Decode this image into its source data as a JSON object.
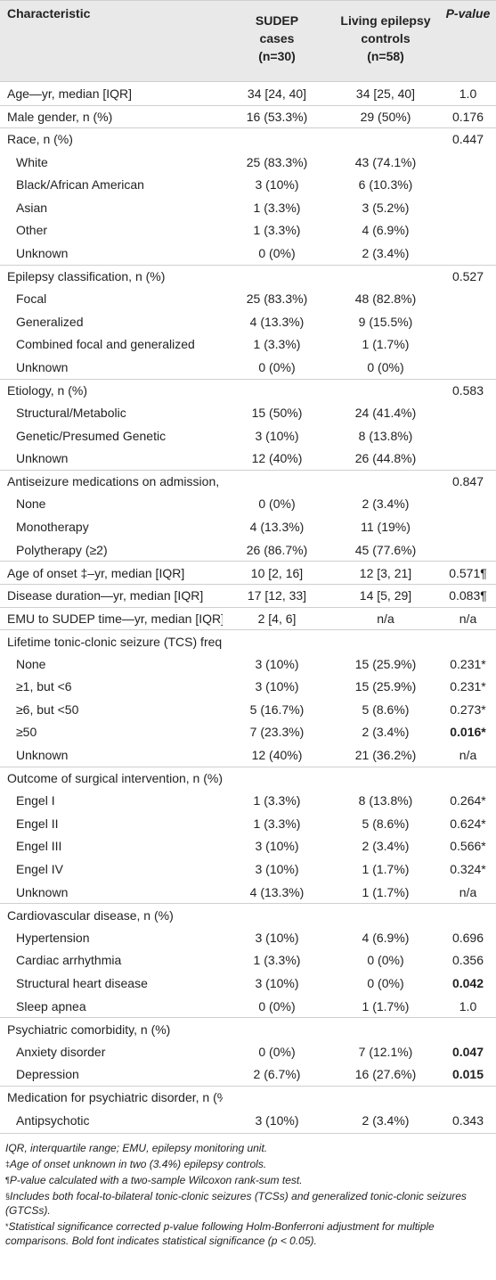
{
  "table": {
    "headers": {
      "characteristic": "Characteristic",
      "sudep_line1": "SUDEP",
      "sudep_line2": "cases",
      "sudep_n": "(n=30)",
      "living_line1": "Living epilepsy",
      "living_line2": "controls",
      "living_n": "(n=58)",
      "pvalue": "P-value"
    },
    "rows": [
      {
        "label": "Age—yr, median [IQR]",
        "sudep": "34 [24, 40]",
        "living": "34 [25, 40]",
        "p": "1.0",
        "sub": false,
        "section": false,
        "bold": false
      },
      {
        "label": "Male gender, n (%)",
        "sudep": "16 (53.3%)",
        "living": "29 (50%)",
        "p": "0.176",
        "sub": false,
        "section": true,
        "bold": false
      },
      {
        "label": "Race, n (%)",
        "sudep": "",
        "living": "",
        "p": "0.447",
        "sub": false,
        "section": true,
        "bold": false
      },
      {
        "label": "White",
        "sudep": "25 (83.3%)",
        "living": "43 (74.1%)",
        "p": "",
        "sub": true,
        "section": false,
        "bold": false
      },
      {
        "label": "Black/African American",
        "sudep": "3 (10%)",
        "living": "6 (10.3%)",
        "p": "",
        "sub": true,
        "section": false,
        "bold": false
      },
      {
        "label": "Asian",
        "sudep": "1 (3.3%)",
        "living": "3 (5.2%)",
        "p": "",
        "sub": true,
        "section": false,
        "bold": false
      },
      {
        "label": "Other",
        "sudep": "1 (3.3%)",
        "living": "4 (6.9%)",
        "p": "",
        "sub": true,
        "section": false,
        "bold": false
      },
      {
        "label": "Unknown",
        "sudep": "0 (0%)",
        "living": "2 (3.4%)",
        "p": "",
        "sub": true,
        "section": false,
        "bold": false
      },
      {
        "label": "Epilepsy classification, n (%)",
        "sudep": "",
        "living": "",
        "p": "0.527",
        "sub": false,
        "section": true,
        "bold": false
      },
      {
        "label": "Focal",
        "sudep": "25 (83.3%)",
        "living": "48 (82.8%)",
        "p": "",
        "sub": true,
        "section": false,
        "bold": false
      },
      {
        "label": "Generalized",
        "sudep": "4 (13.3%)",
        "living": "9 (15.5%)",
        "p": "",
        "sub": true,
        "section": false,
        "bold": false
      },
      {
        "label": "Combined focal and generalized",
        "sudep": "1 (3.3%)",
        "living": "1 (1.7%)",
        "p": "",
        "sub": true,
        "section": false,
        "bold": false
      },
      {
        "label": "Unknown",
        "sudep": "0 (0%)",
        "living": "0 (0%)",
        "p": "",
        "sub": true,
        "section": false,
        "bold": false
      },
      {
        "label": "Etiology, n (%)",
        "sudep": "",
        "living": "",
        "p": "0.583",
        "sub": false,
        "section": true,
        "bold": false
      },
      {
        "label": "Structural/Metabolic",
        "sudep": "15 (50%)",
        "living": "24 (41.4%)",
        "p": "",
        "sub": true,
        "section": false,
        "bold": false
      },
      {
        "label": "Genetic/Presumed Genetic",
        "sudep": "3 (10%)",
        "living": "8 (13.8%)",
        "p": "",
        "sub": true,
        "section": false,
        "bold": false
      },
      {
        "label": "Unknown",
        "sudep": "12 (40%)",
        "living": "26 (44.8%)",
        "p": "",
        "sub": true,
        "section": false,
        "bold": false
      },
      {
        "label": "Antiseizure medications on admission, n (%)",
        "sudep": "",
        "living": "",
        "p": "0.847",
        "sub": false,
        "section": true,
        "bold": false
      },
      {
        "label": "None",
        "sudep": "0 (0%)",
        "living": "2 (3.4%)",
        "p": "",
        "sub": true,
        "section": false,
        "bold": false
      },
      {
        "label": "Monotherapy",
        "sudep": "4 (13.3%)",
        "living": "11 (19%)",
        "p": "",
        "sub": true,
        "section": false,
        "bold": false
      },
      {
        "label": "Polytherapy (≥2)",
        "sudep": "26 (86.7%)",
        "living": "45 (77.6%)",
        "p": "",
        "sub": true,
        "section": false,
        "bold": false
      },
      {
        "label": "Age of onset ‡–yr, median [IQR]",
        "sudep": "10 [2, 16]",
        "living": "12 [3, 21]",
        "p": "0.571¶",
        "sub": false,
        "section": true,
        "bold": false
      },
      {
        "label": "Disease duration—yr, median [IQR]",
        "sudep": "17 [12, 33]",
        "living": "14 [5, 29]",
        "p": "0.083¶",
        "sub": false,
        "section": true,
        "bold": false
      },
      {
        "label": "EMU to SUDEP time—yr, median [IQR]",
        "sudep": "2 [4, 6]",
        "living": "n/a",
        "p": "n/a",
        "sub": false,
        "section": true,
        "bold": false
      },
      {
        "label": "Lifetime tonic-clonic seizure (TCS) frequency§, n (%)",
        "sudep": "",
        "living": "",
        "p": "",
        "sub": false,
        "section": true,
        "bold": false
      },
      {
        "label": "None",
        "sudep": "3 (10%)",
        "living": "15 (25.9%)",
        "p": "0.231*",
        "sub": true,
        "section": false,
        "bold": false
      },
      {
        "label": "≥1, but <6",
        "sudep": "3 (10%)",
        "living": "15 (25.9%)",
        "p": "0.231*",
        "sub": true,
        "section": false,
        "bold": false
      },
      {
        "label": "≥6, but <50",
        "sudep": "5 (16.7%)",
        "living": "5 (8.6%)",
        "p": "0.273*",
        "sub": true,
        "section": false,
        "bold": false
      },
      {
        "label": "≥50",
        "sudep": "7 (23.3%)",
        "living": "2 (3.4%)",
        "p": "0.016*",
        "sub": true,
        "section": false,
        "bold": true
      },
      {
        "label": "Unknown",
        "sudep": "12 (40%)",
        "living": "21 (36.2%)",
        "p": "n/a",
        "sub": true,
        "section": false,
        "bold": false
      },
      {
        "label": "Outcome of surgical intervention, n (%)",
        "sudep": "",
        "living": "",
        "p": "",
        "sub": false,
        "section": true,
        "bold": false
      },
      {
        "label": "Engel I",
        "sudep": "1 (3.3%)",
        "living": "8 (13.8%)",
        "p": "0.264*",
        "sub": true,
        "section": false,
        "bold": false
      },
      {
        "label": "Engel II",
        "sudep": "1 (3.3%)",
        "living": "5 (8.6%)",
        "p": "0.624*",
        "sub": true,
        "section": false,
        "bold": false
      },
      {
        "label": "Engel III",
        "sudep": "3 (10%)",
        "living": "2 (3.4%)",
        "p": "0.566*",
        "sub": true,
        "section": false,
        "bold": false
      },
      {
        "label": "Engel IV",
        "sudep": "3 (10%)",
        "living": "1 (1.7%)",
        "p": "0.324*",
        "sub": true,
        "section": false,
        "bold": false
      },
      {
        "label": "Unknown",
        "sudep": "4 (13.3%)",
        "living": "1 (1.7%)",
        "p": "n/a",
        "sub": true,
        "section": false,
        "bold": false
      },
      {
        "label": "Cardiovascular disease, n (%)",
        "sudep": "",
        "living": "",
        "p": "",
        "sub": false,
        "section": true,
        "bold": false
      },
      {
        "label": "Hypertension",
        "sudep": "3 (10%)",
        "living": "4 (6.9%)",
        "p": "0.696",
        "sub": true,
        "section": false,
        "bold": false
      },
      {
        "label": "Cardiac arrhythmia",
        "sudep": "1 (3.3%)",
        "living": "0 (0%)",
        "p": "0.356",
        "sub": true,
        "section": false,
        "bold": false
      },
      {
        "label": "Structural heart disease",
        "sudep": "3 (10%)",
        "living": "0 (0%)",
        "p": "0.042",
        "sub": true,
        "section": false,
        "bold": true
      },
      {
        "label": "Sleep apnea",
        "sudep": "0 (0%)",
        "living": "1 (1.7%)",
        "p": "1.0",
        "sub": true,
        "section": false,
        "bold": false
      },
      {
        "label": "Psychiatric comorbidity, n (%)",
        "sudep": "",
        "living": "",
        "p": "",
        "sub": false,
        "section": true,
        "bold": false
      },
      {
        "label": "Anxiety disorder",
        "sudep": "0 (0%)",
        "living": "7 (12.1%)",
        "p": "0.047",
        "sub": true,
        "section": false,
        "bold": true
      },
      {
        "label": "Depression",
        "sudep": "2 (6.7%)",
        "living": "16 (27.6%)",
        "p": "0.015",
        "sub": true,
        "section": false,
        "bold": true
      },
      {
        "label": "Medication for psychiatric disorder, n (%)",
        "sudep": "",
        "living": "",
        "p": "",
        "sub": false,
        "section": true,
        "bold": false
      },
      {
        "label": "Antipsychotic",
        "sudep": "3 (10%)",
        "living": "2 (3.4%)",
        "p": "0.343",
        "sub": true,
        "section": false,
        "bold": false
      }
    ]
  },
  "footnotes": {
    "fn1": "IQR, interquartile range; EMU, epilepsy monitoring unit.",
    "fn2_symbol": "‡",
    "fn2": "Age of onset unknown in two (3.4%) epilepsy controls.",
    "fn3_symbol": "¶",
    "fn3": "P-value calculated with a two-sample Wilcoxon rank-sum test.",
    "fn4_symbol": "§",
    "fn4": "Includes both focal-to-bilateral tonic-clonic seizures (TCSs) and generalized tonic-clonic seizures (GTCSs).",
    "fn5_symbol": "*",
    "fn5": "Statistical significance corrected p-value following Holm-Bonferroni adjustment for multiple comparisons. Bold font indicates statistical significance (p < 0.05)."
  }
}
